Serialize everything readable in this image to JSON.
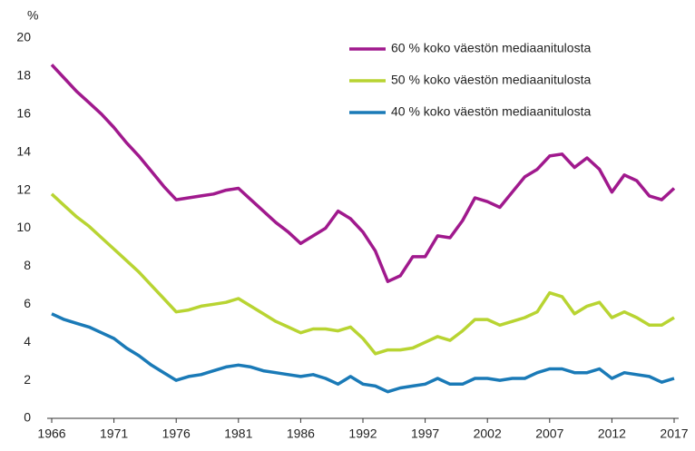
{
  "chart_data": {
    "type": "line",
    "y_label": "%",
    "categories": [
      "1966",
      null,
      null,
      null,
      null,
      "1971",
      null,
      null,
      null,
      null,
      "1976",
      null,
      null,
      null,
      null,
      "1981",
      null,
      null,
      null,
      null,
      "1986",
      null,
      null,
      null,
      null,
      "1992",
      null,
      null,
      null,
      null,
      "1997",
      null,
      null,
      null,
      null,
      "2002",
      null,
      null,
      null,
      null,
      "2007",
      null,
      null,
      null,
      null,
      "2012",
      null,
      null,
      null,
      null,
      "2017"
    ],
    "series": [
      {
        "name": "60 % koko väestön mediaanitulosta",
        "color": "#a0198d",
        "values": [
          18.6,
          17.9,
          17.2,
          16.6,
          16.0,
          15.3,
          14.5,
          13.8,
          13.0,
          12.2,
          11.5,
          11.6,
          11.7,
          11.8,
          12.0,
          12.1,
          11.5,
          10.9,
          10.3,
          9.8,
          9.2,
          9.6,
          10.0,
          10.9,
          10.5,
          9.8,
          8.8,
          7.2,
          7.5,
          8.5,
          8.5,
          9.6,
          9.5,
          10.4,
          11.6,
          11.4,
          11.1,
          11.9,
          12.7,
          13.1,
          13.8,
          13.9,
          13.2,
          13.7,
          13.1,
          11.9,
          12.8,
          12.5,
          11.7,
          11.5,
          12.1
        ]
      },
      {
        "name": "50 % koko väestön mediaanitulosta",
        "color": "#b8d432",
        "values": [
          11.8,
          11.2,
          10.6,
          10.1,
          9.5,
          8.9,
          8.3,
          7.7,
          7.0,
          6.3,
          5.6,
          5.7,
          5.9,
          6.0,
          6.1,
          6.3,
          5.9,
          5.5,
          5.1,
          4.8,
          4.5,
          4.7,
          4.7,
          4.6,
          4.8,
          4.2,
          3.4,
          3.6,
          3.6,
          3.7,
          4.0,
          4.3,
          4.1,
          4.6,
          5.2,
          5.2,
          4.9,
          5.1,
          5.3,
          5.6,
          6.6,
          6.4,
          5.5,
          5.9,
          6.1,
          5.3,
          5.6,
          5.3,
          4.9,
          4.9,
          5.3
        ]
      },
      {
        "name": "40 % koko väestön mediaanitulosta",
        "color": "#1a7ab7",
        "values": [
          5.5,
          5.2,
          5.0,
          4.8,
          4.5,
          4.2,
          3.7,
          3.3,
          2.8,
          2.4,
          2.0,
          2.2,
          2.3,
          2.5,
          2.7,
          2.8,
          2.7,
          2.5,
          2.4,
          2.3,
          2.2,
          2.3,
          2.1,
          1.8,
          2.2,
          1.8,
          1.7,
          1.4,
          1.6,
          1.7,
          1.8,
          2.1,
          1.8,
          1.8,
          2.1,
          2.1,
          2.0,
          2.1,
          2.1,
          2.4,
          2.6,
          2.6,
          2.4,
          2.4,
          2.6,
          2.1,
          2.4,
          2.3,
          2.2,
          1.9,
          2.1
        ]
      }
    ],
    "ylim": [
      0,
      20
    ],
    "yticks": [
      0,
      2,
      4,
      6,
      8,
      10,
      12,
      14,
      16,
      18,
      20
    ],
    "grid": false,
    "legend": "top-right"
  }
}
